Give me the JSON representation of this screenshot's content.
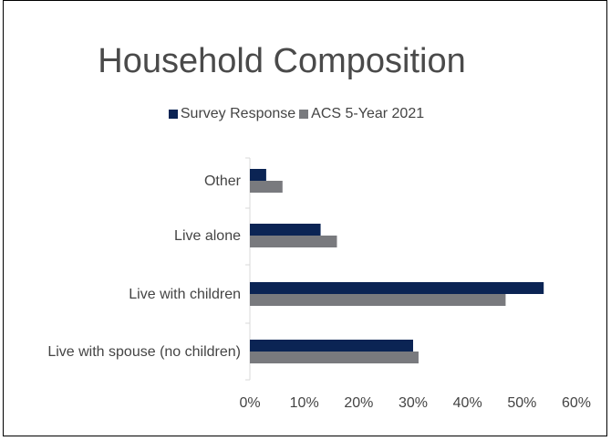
{
  "chart_data": {
    "type": "bar",
    "orientation": "horizontal",
    "title": "Household Composition",
    "categories": [
      "Other",
      "Live alone",
      "Live with children",
      "Live with spouse (no children)"
    ],
    "series": [
      {
        "name": "Survey Response",
        "color": "#0b2454",
        "values": [
          3,
          13,
          54,
          30
        ]
      },
      {
        "name": "ACS 5-Year 2021",
        "color": "#797a7e",
        "values": [
          6,
          16,
          47,
          31
        ]
      }
    ],
    "xlim": [
      0,
      60
    ],
    "xticks": [
      "0%",
      "10%",
      "20%",
      "30%",
      "40%",
      "50%",
      "60%"
    ],
    "xtick_values": [
      0,
      10,
      20,
      30,
      40,
      50,
      60
    ],
    "grid": false,
    "legend_position": "top"
  }
}
